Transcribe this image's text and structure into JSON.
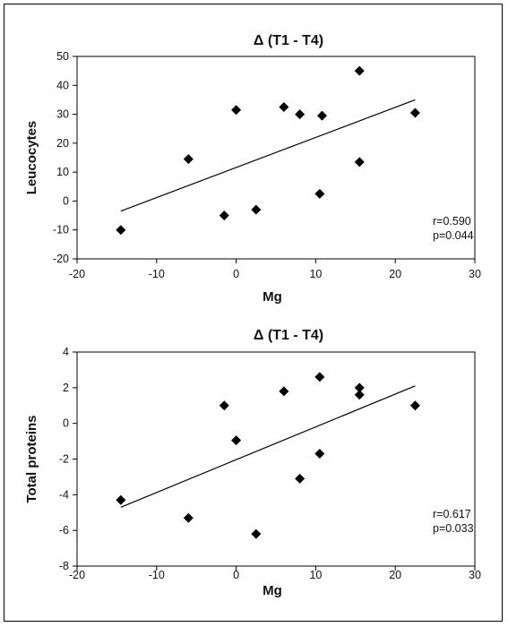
{
  "chart_data": [
    {
      "type": "scatter",
      "title": "Δ (T1 - T4)",
      "xlabel": "Mg",
      "ylabel": "Leucocytes",
      "xlim": [
        -20,
        30
      ],
      "ylim": [
        -20,
        50
      ],
      "xticks": [
        "-20",
        "-10",
        "0",
        "10",
        "20",
        "30"
      ],
      "yticks": [
        "-20",
        "-10",
        "0",
        "10",
        "20",
        "30",
        "40",
        "50"
      ],
      "points": [
        {
          "x": -14.5,
          "y": -10
        },
        {
          "x": -6,
          "y": 14.5
        },
        {
          "x": -1.5,
          "y": -5
        },
        {
          "x": 0,
          "y": 31.5
        },
        {
          "x": 2.5,
          "y": -3
        },
        {
          "x": 6,
          "y": 32.5
        },
        {
          "x": 8,
          "y": 30
        },
        {
          "x": 10.5,
          "y": 2.5
        },
        {
          "x": 10.8,
          "y": 29.5
        },
        {
          "x": 15.5,
          "y": 45
        },
        {
          "x": 15.5,
          "y": 13.5
        },
        {
          "x": 22.5,
          "y": 30.5
        }
      ],
      "trendline": {
        "x": [
          -14.5,
          22.5
        ],
        "y": [
          -3.5,
          35
        ]
      },
      "stats": [
        "r=0.590",
        "p=0.044"
      ]
    },
    {
      "type": "scatter",
      "title": "Δ (T1 - T4)",
      "xlabel": "Mg",
      "ylabel": "Total proteins",
      "xlim": [
        -20,
        30
      ],
      "ylim": [
        -8,
        4
      ],
      "xticks": [
        "-20",
        "-10",
        "0",
        "10",
        "20",
        "30"
      ],
      "yticks": [
        "-8",
        "-6",
        "-4",
        "-2",
        "0",
        "2",
        "4"
      ],
      "points": [
        {
          "x": -14.5,
          "y": -4.3
        },
        {
          "x": -6,
          "y": -5.3
        },
        {
          "x": -1.5,
          "y": 1
        },
        {
          "x": 0,
          "y": -0.95
        },
        {
          "x": 2.5,
          "y": -6.2
        },
        {
          "x": 6,
          "y": 1.8
        },
        {
          "x": 8,
          "y": -3.1
        },
        {
          "x": 10.5,
          "y": -1.7
        },
        {
          "x": 10.5,
          "y": 2.6
        },
        {
          "x": 15.5,
          "y": 2
        },
        {
          "x": 15.5,
          "y": 1.6
        },
        {
          "x": 22.5,
          "y": 1
        }
      ],
      "trendline": {
        "x": [
          -14.5,
          22.5
        ],
        "y": [
          -4.7,
          2.1
        ]
      },
      "stats": [
        "r=0.617",
        "p=0.033"
      ]
    }
  ]
}
